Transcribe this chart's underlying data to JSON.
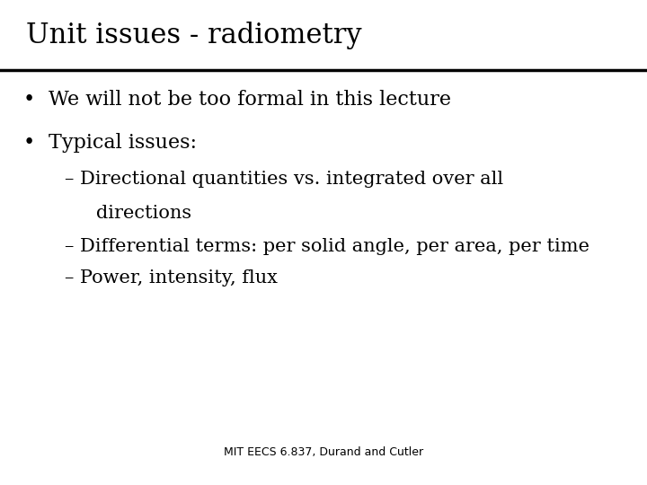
{
  "title": "Unit issues - radiometry",
  "bullet1": "We will not be too formal in this lecture",
  "bullet2": "Typical issues:",
  "sub1_line1": "– Directional quantities vs. integrated over all",
  "sub1_line2": "   directions",
  "sub2": "– Differential terms: per solid angle, per area, per time",
  "sub3": "– Power, intensity, flux",
  "footer": "MIT EECS 6.837, Durand and Cutler",
  "bg_color": "#ffffff",
  "text_color": "#000000",
  "title_fontsize": 22,
  "bullet_fontsize": 16,
  "sub_fontsize": 15,
  "footer_fontsize": 9
}
